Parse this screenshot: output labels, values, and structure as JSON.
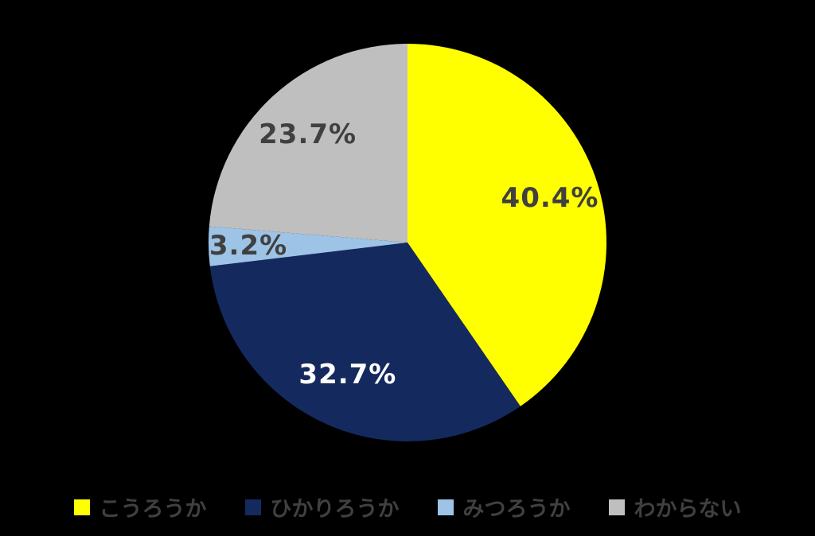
{
  "chart_data": {
    "type": "pie",
    "title": "",
    "categories": [
      "こうろうか",
      "ひかりろうか",
      "みつろうか",
      "わからない"
    ],
    "values": [
      40.4,
      32.7,
      3.2,
      23.7
    ],
    "data_labels": [
      "40.4%",
      "32.7%",
      "3.2%",
      "23.7%"
    ],
    "slice_colors": [
      "#ffff00",
      "#14295e",
      "#9dc3e6",
      "#bfbfbf"
    ],
    "data_label_colors": [
      "#404040",
      "#ffffff",
      "#404040",
      "#404040"
    ],
    "start_angle_deg": 0,
    "direction": "clockwise",
    "legend_position": "bottom",
    "legend_text_color": "#404040",
    "background_color": "#000000",
    "label_radius_factors": [
      0.75,
      0.73,
      0.8,
      0.74
    ]
  }
}
